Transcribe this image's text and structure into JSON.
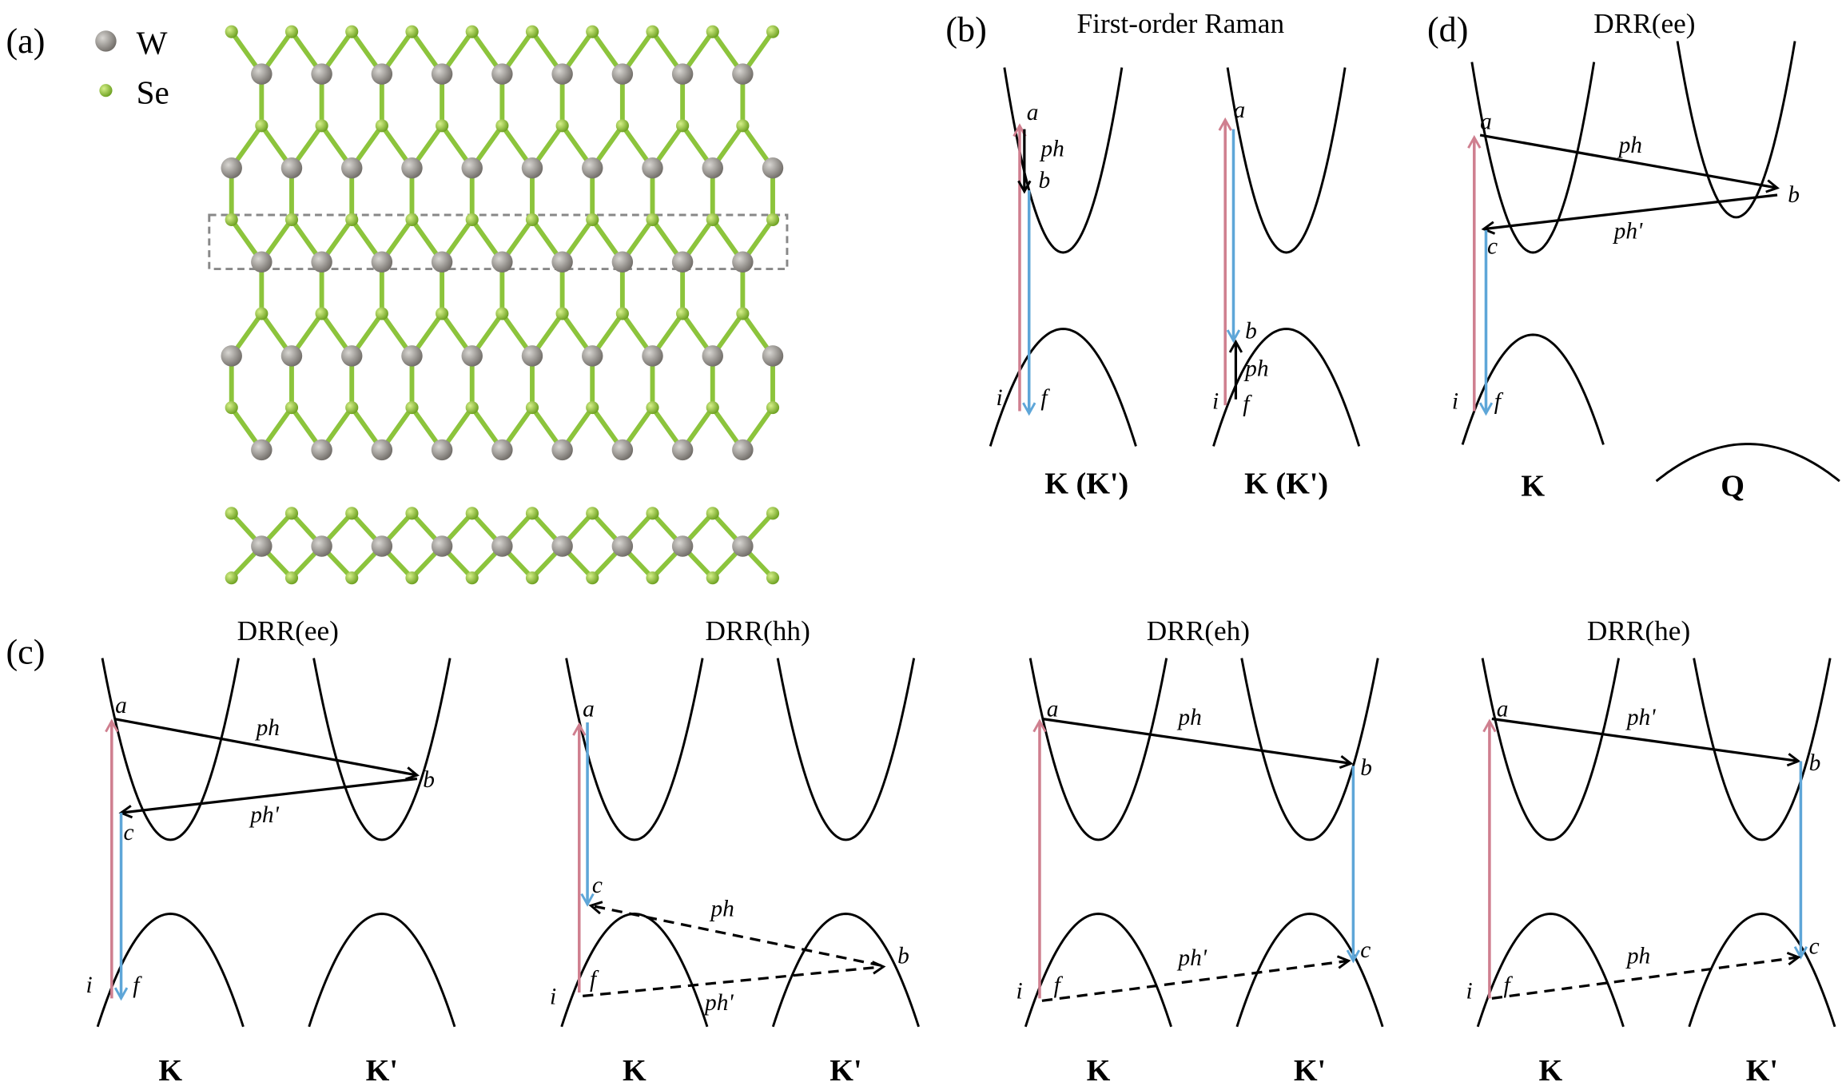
{
  "panel_a": {
    "label": "(a)",
    "legend": [
      "W",
      "Se"
    ]
  },
  "panel_b": {
    "label": "(b)",
    "title": "First-order Raman",
    "diagrams": [
      {
        "points": [
          "a",
          "b",
          "i",
          "f"
        ],
        "phonons": [
          "ph"
        ],
        "valley": "K (K')"
      },
      {
        "points": [
          "a",
          "b",
          "i",
          "f"
        ],
        "phonons": [
          "ph"
        ],
        "valley": "K (K')"
      }
    ]
  },
  "panel_d": {
    "label": "(d)",
    "title": "DRR(ee)",
    "points": [
      "a",
      "b",
      "c",
      "i",
      "f"
    ],
    "phonons": [
      "ph",
      "ph'"
    ],
    "valleys": [
      "K",
      "Q"
    ]
  },
  "panel_c": {
    "label": "(c)",
    "diagrams": [
      {
        "title": "DRR(ee)",
        "points": [
          "a",
          "b",
          "c",
          "i",
          "f"
        ],
        "phonons": [
          "ph",
          "ph'"
        ],
        "valleys": [
          "K",
          "K'"
        ]
      },
      {
        "title": "DRR(hh)",
        "points": [
          "a",
          "b",
          "c",
          "i",
          "f"
        ],
        "phonons": [
          "ph",
          "ph'"
        ],
        "valleys": [
          "K",
          "K'"
        ]
      },
      {
        "title": "DRR(eh)",
        "points": [
          "a",
          "b",
          "c",
          "i",
          "f"
        ],
        "phonons": [
          "ph",
          "ph'"
        ],
        "valleys": [
          "K",
          "K'"
        ]
      },
      {
        "title": "DRR(he)",
        "points": [
          "a",
          "b",
          "c",
          "i",
          "f"
        ],
        "phonons": [
          "ph'",
          "ph"
        ],
        "valleys": [
          "K",
          "K'"
        ]
      }
    ]
  }
}
